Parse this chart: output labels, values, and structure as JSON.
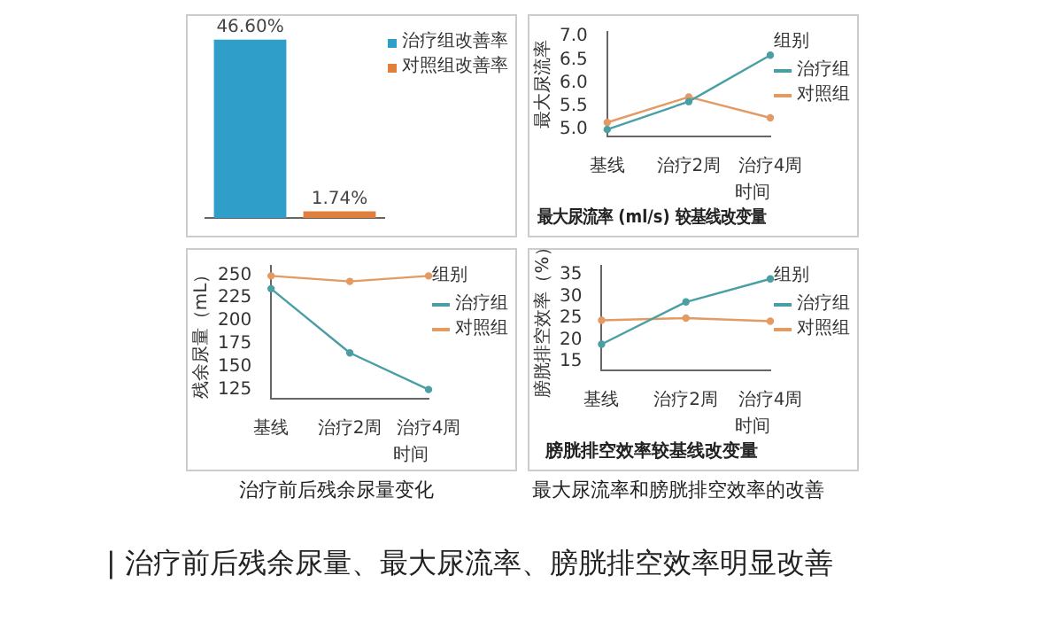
{
  "chart_data": [
    {
      "type": "bar",
      "categories": [
        null,
        null
      ],
      "series": [
        {
          "name": "治疗组改善率",
          "color": "#2f9fca",
          "values": [
            46.6,
            null
          ],
          "value_labels": [
            "46.60%",
            null
          ]
        },
        {
          "name": "对照组改善率",
          "color": "#e0803c",
          "values": [
            null,
            1.74
          ],
          "value_labels": [
            null,
            "1.74%"
          ]
        }
      ],
      "stacked": true,
      "tick_labels": false,
      "legend": "right",
      "grid": false
    },
    {
      "type": "line",
      "title": "最大尿流率 (ml/s) 较基线改变量",
      "ylabel": "最大尿流率",
      "xlabel": "时间",
      "legend_title": "组别",
      "categories": [
        "基线",
        "治疗2周",
        "治疗4周"
      ],
      "series": [
        {
          "name": "治疗组",
          "color": "#4a9fa4",
          "values": [
            5.0,
            5.6,
            6.6
          ]
        },
        {
          "name": "对照组",
          "color": "#e39a63",
          "values": [
            5.15,
            5.7,
            5.25
          ]
        }
      ],
      "ylim": [
        4.85,
        7.1
      ],
      "yticks": [
        {
          "value": 5,
          "label": "5.0"
        },
        {
          "value": 5.5,
          "label": "5.5"
        },
        {
          "value": 6,
          "label": "6.0"
        },
        {
          "value": 6.5,
          "label": "6.5"
        },
        {
          "value": 7,
          "label": "7.0"
        }
      ],
      "legend": "right",
      "marker": "circle",
      "grid": false
    },
    {
      "type": "line",
      "ylabel": "残余尿量（mL）",
      "xlabel": "时间",
      "legend_title": "组别",
      "categories": [
        "基线",
        "治疗2周",
        "治疗4周"
      ],
      "series": [
        {
          "name": "治疗组",
          "color": "#4a9fa4",
          "values": [
            235,
            165,
            125
          ]
        },
        {
          "name": "对照组",
          "color": "#e39a63",
          "values": [
            249,
            243,
            249
          ]
        }
      ],
      "ylim": [
        115,
        260
      ],
      "yticks": [
        125,
        150,
        175,
        200,
        225,
        250
      ],
      "legend": "right",
      "marker": "circle",
      "grid": false,
      "annotations": [
        "治疗前后残余尿量变化"
      ]
    },
    {
      "type": "line",
      "title": "膀胱排空效率较基线改变量",
      "ylabel": "膀胱排空效率（%）",
      "xlabel": "时间",
      "legend_title": "组别",
      "categories": [
        "基线",
        "治疗2周",
        "治疗4周"
      ],
      "series": [
        {
          "name": "治疗组",
          "color": "#4a9fa4",
          "values": [
            19,
            28.7,
            34
          ]
        },
        {
          "name": "对照组",
          "color": "#e39a63",
          "values": [
            24.5,
            25,
            24.3
          ]
        }
      ],
      "ylim": [
        13,
        37
      ],
      "yticks": [
        15,
        20,
        25,
        30,
        35
      ],
      "legend": "right",
      "marker": "circle",
      "grid": false,
      "annotations": [
        "最大尿流率和膀胱排空效率的改善",
        "| 治疗前后残余尿量、最大尿流率、膀胱排空效率明显改善"
      ]
    }
  ]
}
